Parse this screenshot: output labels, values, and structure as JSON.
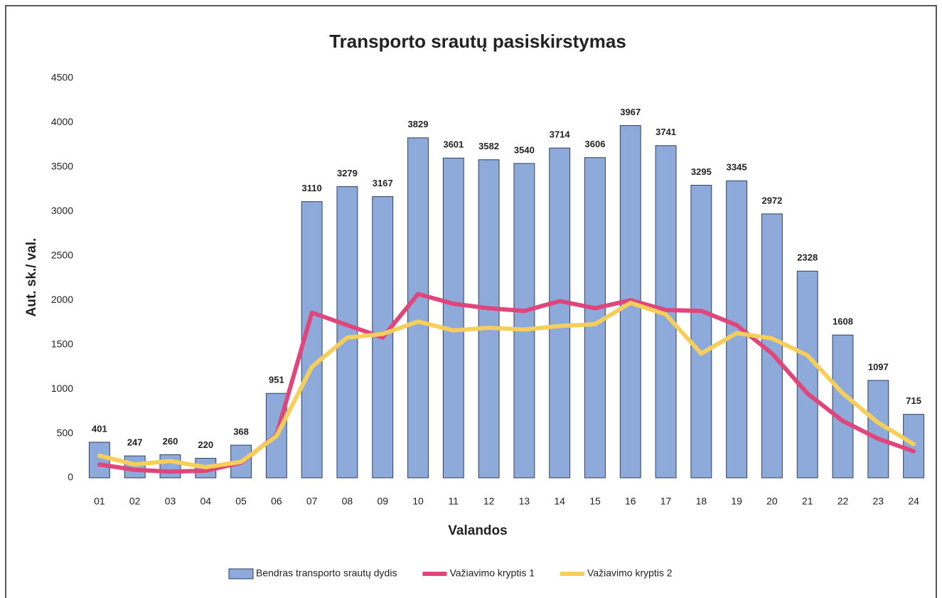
{
  "chart_data": {
    "type": "bar",
    "title": "Transporto srautų pasiskirstymas",
    "x_label": "Valandos",
    "y_label": "Aut. sk./ val.",
    "categories": [
      "01",
      "02",
      "03",
      "04",
      "05",
      "06",
      "07",
      "08",
      "09",
      "10",
      "11",
      "12",
      "13",
      "14",
      "15",
      "16",
      "17",
      "18",
      "19",
      "20",
      "21",
      "22",
      "23",
      "24"
    ],
    "series": [
      {
        "name": "Bendras transporto srautų dydis",
        "type": "bar",
        "color": "#8eaadb",
        "values": [
          401,
          247,
          260,
          220,
          368,
          951,
          3110,
          3279,
          3167,
          3829,
          3601,
          3582,
          3540,
          3714,
          3606,
          3967,
          3741,
          3295,
          3345,
          2972,
          2328,
          1608,
          1097,
          715
        ]
      },
      {
        "name": "Važiavimo kryptis 1",
        "type": "line",
        "color": "#e0457b",
        "values": [
          150,
          90,
          70,
          80,
          170,
          480,
          1860,
          1720,
          1580,
          2070,
          1960,
          1910,
          1880,
          1990,
          1910,
          2000,
          1890,
          1880,
          1720,
          1400,
          950,
          640,
          440,
          300
        ]
      },
      {
        "name": "Važiavimo kryptis 2",
        "type": "line",
        "color": "#f5cf5a",
        "values": [
          250,
          150,
          190,
          120,
          180,
          470,
          1250,
          1580,
          1620,
          1760,
          1660,
          1690,
          1670,
          1710,
          1730,
          1970,
          1840,
          1400,
          1630,
          1570,
          1380,
          950,
          620,
          380
        ]
      }
    ],
    "ylim": [
      0,
      4500
    ],
    "yticks": [
      0,
      500,
      1000,
      1500,
      2000,
      2500,
      3000,
      3500,
      4000,
      4500
    ],
    "grid": false,
    "legend": "bottom"
  }
}
